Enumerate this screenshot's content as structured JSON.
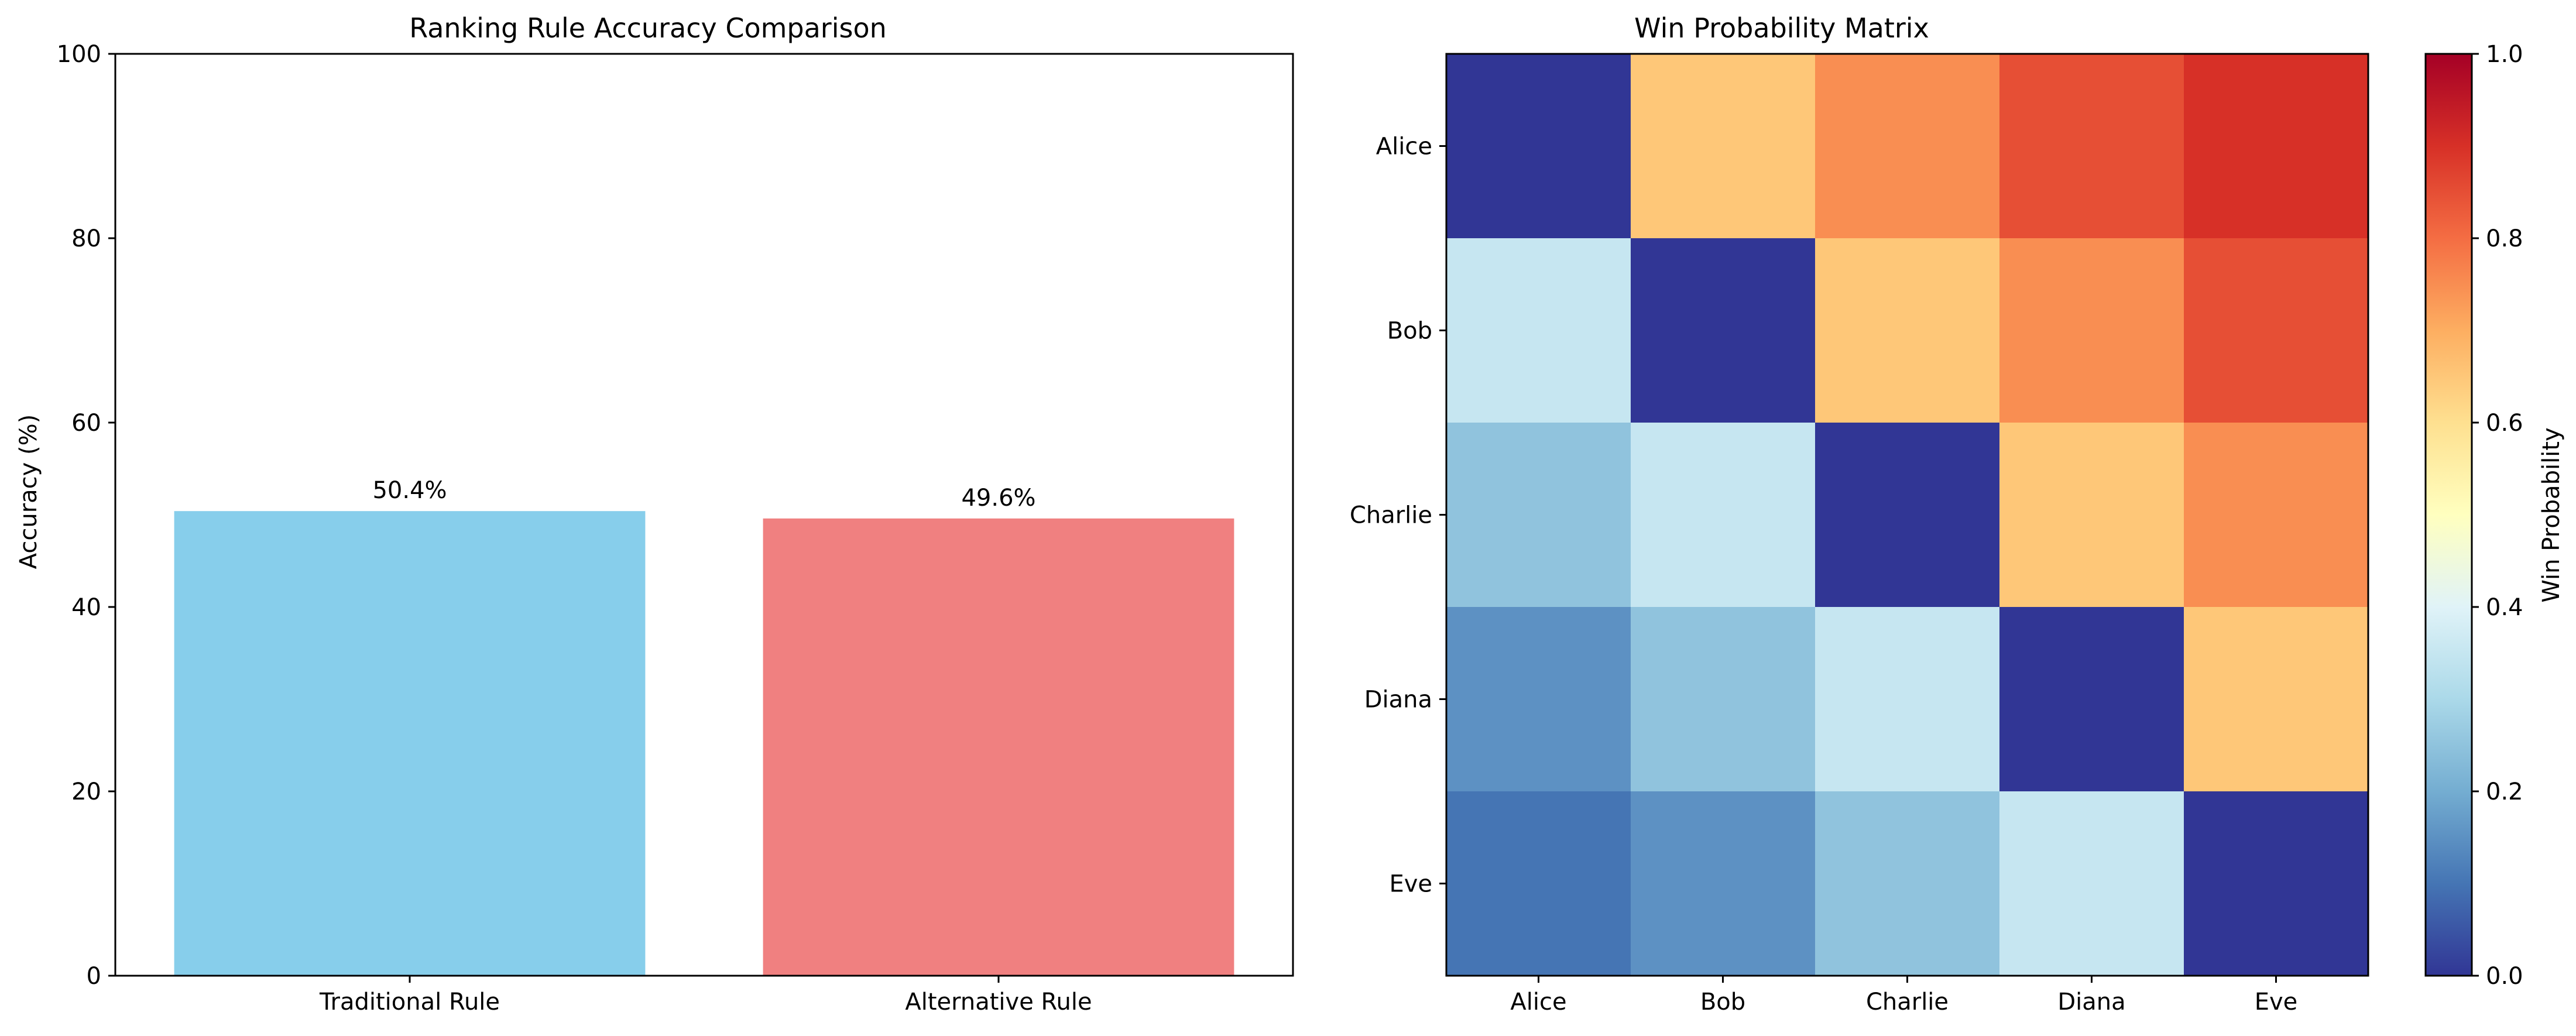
{
  "chart_data": [
    {
      "type": "bar",
      "title": "Ranking Rule Accuracy Comparison",
      "xlabel": "",
      "ylabel": "Accuracy (%)",
      "categories": [
        "Traditional Rule",
        "Alternative Rule"
      ],
      "values": [
        50.4,
        49.6
      ],
      "data_labels": [
        "50.4%",
        "49.6%"
      ],
      "colors": [
        "#87CEEB",
        "#F08080"
      ],
      "ylim": [
        0,
        100
      ],
      "yticks": [
        "0",
        "20",
        "40",
        "60",
        "80",
        "100"
      ],
      "grid": false
    },
    {
      "type": "heatmap",
      "title": "Win Probability Matrix",
      "x_categories": [
        "Alice",
        "Bob",
        "Charlie",
        "Diana",
        "Eve"
      ],
      "y_categories": [
        "Alice",
        "Bob",
        "Charlie",
        "Diana",
        "Eve"
      ],
      "values": [
        [
          0.0,
          0.65,
          0.75,
          0.85,
          0.9
        ],
        [
          0.35,
          0.0,
          0.65,
          0.75,
          0.85
        ],
        [
          0.25,
          0.35,
          0.0,
          0.65,
          0.75
        ],
        [
          0.15,
          0.25,
          0.35,
          0.0,
          0.65
        ],
        [
          0.1,
          0.15,
          0.25,
          0.35,
          0.0
        ]
      ],
      "colorscale": "RdYlBu_r",
      "colorbar": {
        "label": "Win Probability",
        "range": [
          0,
          1
        ],
        "ticks": [
          "0.0",
          "0.2",
          "0.4",
          "0.6",
          "0.8",
          "1.0"
        ]
      }
    }
  ]
}
